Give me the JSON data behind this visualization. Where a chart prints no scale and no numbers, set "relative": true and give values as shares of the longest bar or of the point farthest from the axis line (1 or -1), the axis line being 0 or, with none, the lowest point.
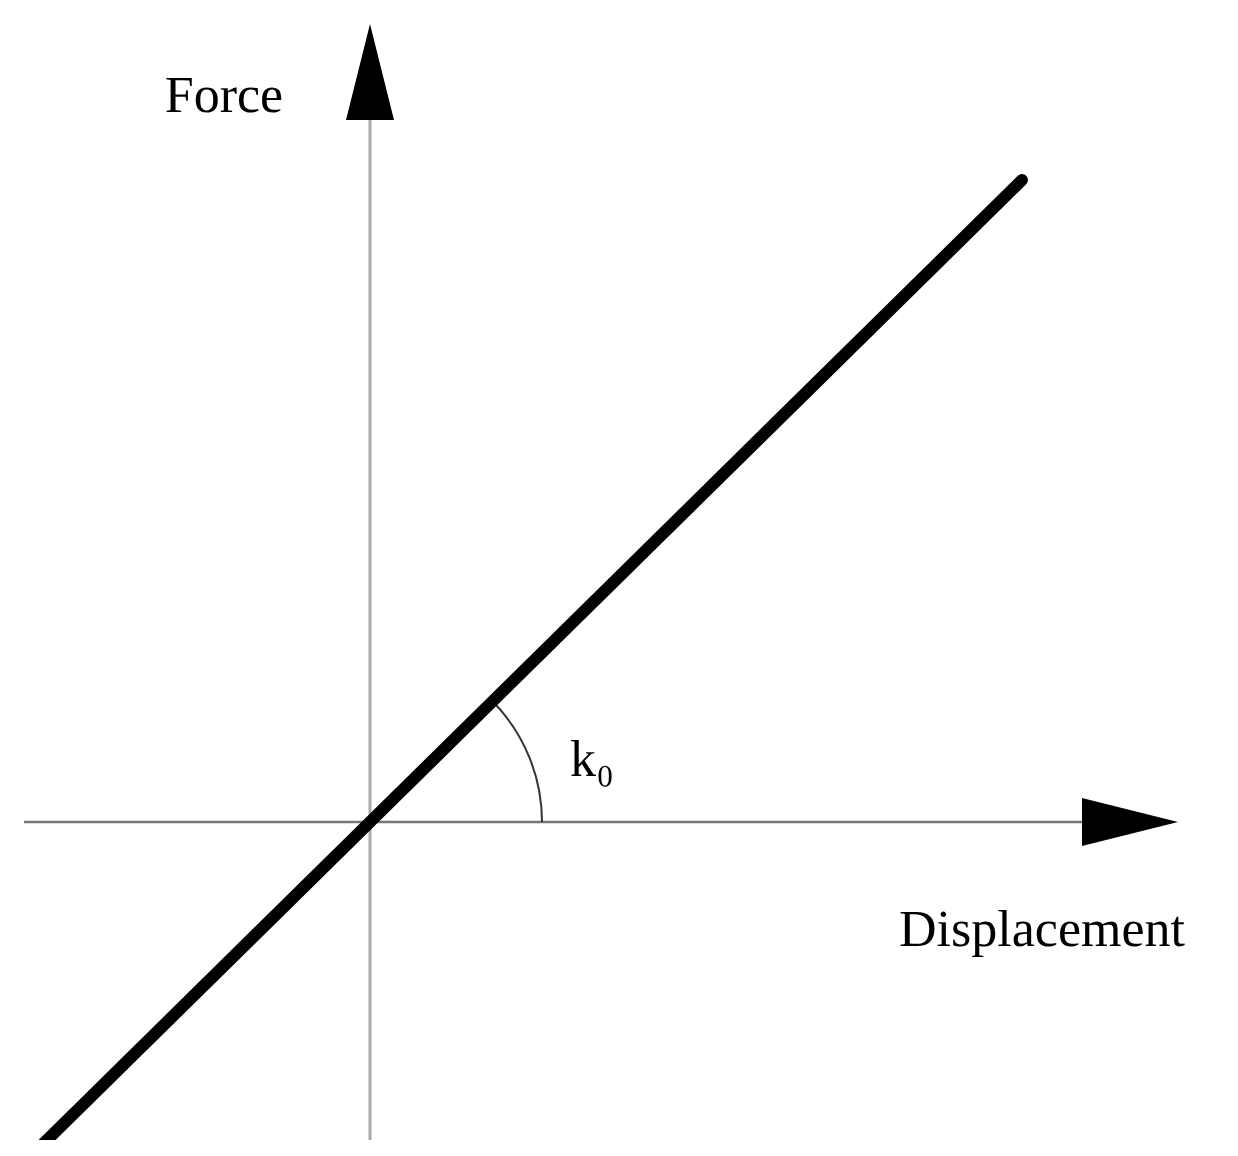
{
  "chart_data": {
    "type": "line",
    "relative": true,
    "xlabel": "Displacement",
    "ylabel": "Force",
    "annotations": [
      "k₀"
    ],
    "categories": [
      null,
      null,
      null,
      null
    ],
    "series": [
      {
        "color": "#000000",
        "values": [
          -0.5,
          0,
          0.5,
          1
        ]
      }
    ]
  }
}
